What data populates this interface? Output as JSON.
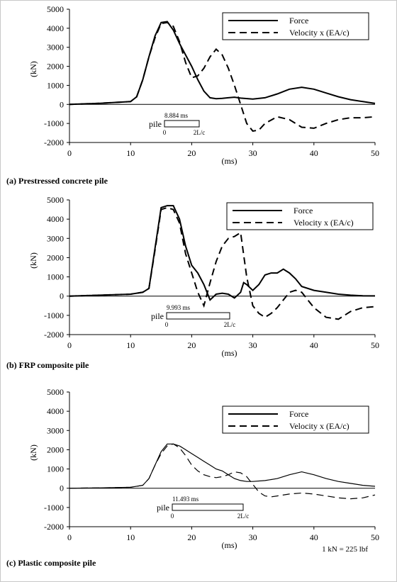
{
  "chart_data": [
    {
      "type": "line",
      "caption": "(a) Prestressed concrete pile",
      "xlabel": "(ms)",
      "ylabel": "(kN)",
      "xlim": [
        0,
        50
      ],
      "ylim": [
        -2000,
        5000
      ],
      "xticks": [
        0,
        10,
        20,
        30,
        40,
        50
      ],
      "yticks": [
        -2000,
        -1000,
        0,
        1000,
        2000,
        3000,
        4000,
        5000
      ],
      "legend": "top-right",
      "series": [
        {
          "name": "Force",
          "dash": "solid",
          "x": [
            0,
            5,
            10,
            11,
            12,
            13,
            14,
            15,
            16,
            17,
            18,
            19,
            20,
            21,
            22,
            23,
            24,
            25,
            26,
            27,
            28,
            30,
            32,
            34,
            36,
            38,
            40,
            42,
            44,
            46,
            48,
            50
          ],
          "y": [
            0,
            60,
            150,
            400,
            1300,
            2500,
            3600,
            4300,
            4350,
            3900,
            3200,
            2600,
            2000,
            1300,
            700,
            350,
            300,
            320,
            350,
            380,
            330,
            280,
            350,
            550,
            800,
            900,
            800,
            600,
            400,
            250,
            150,
            50
          ]
        },
        {
          "name": "Velocity x (EA/c)",
          "dash": "dashed",
          "x": [
            0,
            5,
            10,
            11,
            12,
            13,
            14,
            15,
            16,
            17,
            18,
            19,
            20,
            21,
            22,
            23,
            24,
            25,
            26,
            27,
            28,
            29,
            30,
            31,
            32,
            34,
            36,
            38,
            40,
            42,
            44,
            46,
            48,
            50
          ],
          "y": [
            0,
            60,
            150,
            400,
            1300,
            2500,
            3500,
            4250,
            4300,
            4100,
            3300,
            2200,
            1400,
            1500,
            1900,
            2500,
            2900,
            2600,
            1900,
            1000,
            0,
            -1000,
            -1400,
            -1350,
            -1000,
            -650,
            -800,
            -1200,
            -1250,
            -1000,
            -800,
            -700,
            -700,
            -650
          ]
        }
      ],
      "pile": {
        "label": "pile",
        "time": "8.884 ms",
        "start": "0",
        "end": "2L/c"
      }
    },
    {
      "type": "line",
      "caption": "(b) FRP composite pile",
      "xlabel": "(ms)",
      "ylabel": "(kN)",
      "xlim": [
        0,
        50
      ],
      "ylim": [
        -2000,
        5000
      ],
      "xticks": [
        0,
        10,
        20,
        30,
        40,
        50
      ],
      "yticks": [
        -2000,
        -1000,
        0,
        1000,
        2000,
        3000,
        4000,
        5000
      ],
      "legend": "top-right",
      "series": [
        {
          "name": "Force",
          "dash": "solid",
          "x": [
            0,
            5,
            10,
            12,
            13,
            14,
            15,
            16,
            17,
            18,
            19,
            20,
            21,
            22,
            23,
            24,
            25,
            26,
            27,
            28,
            28.5,
            29,
            30,
            31,
            32,
            33,
            34,
            35,
            36,
            37,
            38,
            40,
            42,
            44,
            46,
            48,
            50
          ],
          "y": [
            0,
            50,
            100,
            200,
            400,
            2500,
            4600,
            4700,
            4700,
            4000,
            2600,
            1600,
            1200,
            600,
            -200,
            100,
            150,
            100,
            -100,
            200,
            700,
            600,
            300,
            600,
            1100,
            1200,
            1200,
            1400,
            1200,
            900,
            500,
            300,
            200,
            100,
            50,
            20,
            10
          ]
        },
        {
          "name": "Velocity x (EA/c)",
          "dash": "dashed",
          "x": [
            0,
            5,
            10,
            12,
            13,
            14,
            15,
            16,
            17,
            18,
            19,
            20,
            21,
            22,
            23,
            24,
            25,
            26,
            27,
            28,
            29,
            30,
            31,
            32,
            33,
            34,
            35,
            36,
            37,
            38,
            39,
            40,
            42,
            44,
            46,
            48,
            50
          ],
          "y": [
            0,
            50,
            100,
            200,
            400,
            2400,
            4500,
            4600,
            4500,
            3800,
            2200,
            1200,
            200,
            -500,
            700,
            1800,
            2600,
            3000,
            3100,
            3300,
            1000,
            -500,
            -900,
            -1100,
            -900,
            -600,
            -200,
            200,
            300,
            200,
            -200,
            -600,
            -1100,
            -1200,
            -800,
            -600,
            -550
          ]
        }
      ],
      "pile": {
        "label": "pile",
        "time": "9.993 ms",
        "start": "0",
        "end": "2L/c"
      }
    },
    {
      "type": "line",
      "caption": "(c) Plastic composite pile",
      "xlabel": "(ms)",
      "ylabel": "(kN)",
      "xlim": [
        0,
        50
      ],
      "ylim": [
        -2000,
        5000
      ],
      "xticks": [
        0,
        10,
        20,
        30,
        40,
        50
      ],
      "yticks": [
        -2000,
        -1000,
        0,
        1000,
        2000,
        3000,
        4000,
        5000
      ],
      "legend": "top-right",
      "series": [
        {
          "name": "Force",
          "dash": "solid",
          "x": [
            0,
            5,
            10,
            12,
            13,
            14,
            15,
            16,
            17,
            18,
            19,
            20,
            21,
            22,
            23,
            24,
            25,
            26,
            27,
            28,
            29,
            30,
            32,
            34,
            36,
            38,
            40,
            42,
            44,
            46,
            48,
            50
          ],
          "y": [
            0,
            20,
            50,
            150,
            500,
            1200,
            1900,
            2300,
            2300,
            2200,
            2000,
            1800,
            1600,
            1400,
            1200,
            1000,
            900,
            700,
            500,
            400,
            350,
            350,
            400,
            500,
            700,
            850,
            700,
            500,
            350,
            250,
            150,
            100
          ]
        },
        {
          "name": "Velocity x (EA/c)",
          "dash": "dashed",
          "x": [
            0,
            5,
            10,
            12,
            13,
            14,
            15,
            16,
            17,
            18,
            19,
            20,
            21,
            22,
            23,
            24,
            25,
            26,
            27,
            28,
            29,
            30,
            31,
            32,
            33,
            34,
            36,
            38,
            40,
            42,
            44,
            46,
            48,
            50
          ],
          "y": [
            0,
            20,
            50,
            150,
            500,
            1200,
            1800,
            2200,
            2300,
            2100,
            1700,
            1200,
            900,
            700,
            600,
            550,
            600,
            700,
            850,
            800,
            600,
            200,
            -200,
            -400,
            -450,
            -400,
            -300,
            -250,
            -300,
            -400,
            -500,
            -550,
            -500,
            -350
          ]
        }
      ],
      "pile": {
        "label": "pile",
        "time": "11.493 ms",
        "start": "0",
        "end": "2L/c"
      },
      "note": "1 kN = 225 lbf"
    }
  ]
}
